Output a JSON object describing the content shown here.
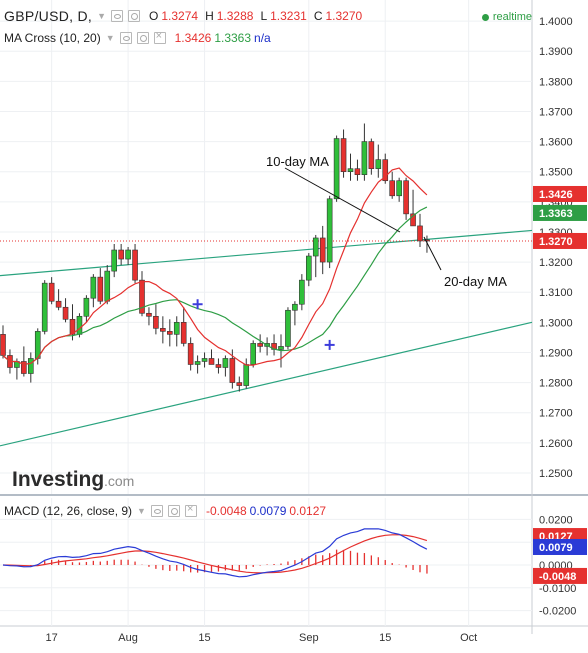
{
  "header": {
    "symbol": "GBP/USD, D,",
    "o_label": "O",
    "o_value": "1.3274",
    "h_label": "H",
    "h_value": "1.3288",
    "l_label": "L",
    "l_value": "1.3231",
    "c_label": "C",
    "c_value": "1.3270",
    "realtime": "realtime"
  },
  "ma_header": {
    "label": "MA Cross (10, 20)",
    "value1": "1.3426",
    "value2": "1.3363",
    "na": "n/a"
  },
  "macd_header": {
    "label": "MACD (12, 26, close, 9)",
    "hist": "-0.0048",
    "macd": "0.0079",
    "signal": "0.0127"
  },
  "annotations": {
    "ma10": "10-day MA",
    "ma20": "20-day MA"
  },
  "logo": {
    "main": "Investing",
    "suffix": ".com"
  },
  "colors": {
    "up": "#2fbf3a",
    "down": "#e5312f",
    "ma10": "#e5312f",
    "ma20": "#2e9e45",
    "trend": "#2aa37f",
    "macd": "#2a3bd6",
    "signal": "#e5312f"
  },
  "chart_data": [
    {
      "type": "candlestick",
      "title": "GBP/USD, D",
      "y_ticks": [
        "1.4000",
        "1.3900",
        "1.3800",
        "1.3700",
        "1.3600",
        "1.3500",
        "1.3400",
        "1.3300",
        "1.3200",
        "1.3100",
        "1.3000",
        "1.2900",
        "1.2800",
        "1.2700",
        "1.2600",
        "1.2500"
      ],
      "ylim": [
        1.245,
        1.405
      ],
      "x_ticks": [
        {
          "i": 7,
          "label": "17"
        },
        {
          "i": 18,
          "label": "Aug"
        },
        {
          "i": 29,
          "label": "15"
        },
        {
          "i": 44,
          "label": "Sep"
        },
        {
          "i": 55,
          "label": "15"
        },
        {
          "i": 67,
          "label": "Oct"
        }
      ],
      "price_labels": [
        {
          "value": 1.3426,
          "text": "1.3426",
          "color": "#e5312f"
        },
        {
          "value": 1.3363,
          "text": "1.3363",
          "color": "#2e9e45"
        },
        {
          "value": 1.327,
          "text": "1.3270",
          "color": "#e5312f"
        }
      ],
      "last_close": 1.327,
      "candles": [
        [
          1.296,
          1.299,
          1.288,
          1.289
        ],
        [
          1.289,
          1.291,
          1.283,
          1.285
        ],
        [
          1.285,
          1.288,
          1.281,
          1.287
        ],
        [
          1.287,
          1.292,
          1.282,
          1.283
        ],
        [
          1.283,
          1.29,
          1.28,
          1.288
        ],
        [
          1.288,
          1.298,
          1.286,
          1.297
        ],
        [
          1.297,
          1.314,
          1.296,
          1.313
        ],
        [
          1.313,
          1.315,
          1.306,
          1.307
        ],
        [
          1.307,
          1.311,
          1.304,
          1.305
        ],
        [
          1.305,
          1.308,
          1.3,
          1.301
        ],
        [
          1.301,
          1.306,
          1.294,
          1.296
        ],
        [
          1.296,
          1.303,
          1.295,
          1.302
        ],
        [
          1.302,
          1.309,
          1.3,
          1.308
        ],
        [
          1.308,
          1.316,
          1.305,
          1.315
        ],
        [
          1.315,
          1.318,
          1.306,
          1.307
        ],
        [
          1.307,
          1.319,
          1.306,
          1.317
        ],
        [
          1.317,
          1.326,
          1.315,
          1.324
        ],
        [
          1.324,
          1.326,
          1.319,
          1.321
        ],
        [
          1.321,
          1.325,
          1.319,
          1.324
        ],
        [
          1.324,
          1.326,
          1.313,
          1.314
        ],
        [
          1.314,
          1.317,
          1.302,
          1.303
        ],
        [
          1.303,
          1.305,
          1.299,
          1.302
        ],
        [
          1.302,
          1.306,
          1.296,
          1.298
        ],
        [
          1.298,
          1.302,
          1.293,
          1.297
        ],
        [
          1.297,
          1.301,
          1.292,
          1.296
        ],
        [
          1.296,
          1.302,
          1.292,
          1.3
        ],
        [
          1.3,
          1.305,
          1.292,
          1.293
        ],
        [
          1.293,
          1.295,
          1.284,
          1.286
        ],
        [
          1.286,
          1.289,
          1.283,
          1.287
        ],
        [
          1.287,
          1.29,
          1.285,
          1.288
        ],
        [
          1.288,
          1.291,
          1.286,
          1.286
        ],
        [
          1.286,
          1.288,
          1.283,
          1.285
        ],
        [
          1.285,
          1.289,
          1.282,
          1.288
        ],
        [
          1.288,
          1.291,
          1.278,
          1.28
        ],
        [
          1.28,
          1.282,
          1.277,
          1.279
        ],
        [
          1.279,
          1.288,
          1.278,
          1.286
        ],
        [
          1.286,
          1.294,
          1.285,
          1.293
        ],
        [
          1.293,
          1.296,
          1.29,
          1.292
        ],
        [
          1.292,
          1.295,
          1.289,
          1.293
        ],
        [
          1.293,
          1.296,
          1.289,
          1.291
        ],
        [
          1.291,
          1.296,
          1.285,
          1.292
        ],
        [
          1.292,
          1.305,
          1.291,
          1.304
        ],
        [
          1.304,
          1.307,
          1.299,
          1.306
        ],
        [
          1.306,
          1.316,
          1.304,
          1.314
        ],
        [
          1.314,
          1.323,
          1.312,
          1.322
        ],
        [
          1.322,
          1.329,
          1.315,
          1.328
        ],
        [
          1.328,
          1.332,
          1.316,
          1.32
        ],
        [
          1.32,
          1.342,
          1.318,
          1.341
        ],
        [
          1.341,
          1.362,
          1.34,
          1.361
        ],
        [
          1.361,
          1.364,
          1.348,
          1.35
        ],
        [
          1.35,
          1.356,
          1.347,
          1.351
        ],
        [
          1.351,
          1.354,
          1.347,
          1.349
        ],
        [
          1.349,
          1.366,
          1.347,
          1.36
        ],
        [
          1.36,
          1.361,
          1.349,
          1.351
        ],
        [
          1.351,
          1.359,
          1.348,
          1.354
        ],
        [
          1.354,
          1.356,
          1.346,
          1.347
        ],
        [
          1.347,
          1.35,
          1.341,
          1.342
        ],
        [
          1.342,
          1.348,
          1.34,
          1.347
        ],
        [
          1.347,
          1.348,
          1.334,
          1.336
        ],
        [
          1.336,
          1.344,
          1.332,
          1.332
        ],
        [
          1.332,
          1.336,
          1.325,
          1.327
        ],
        [
          1.3274,
          1.3288,
          1.3231,
          1.327
        ]
      ],
      "candle_x_index_map": [
        0,
        1,
        2,
        3,
        4,
        5,
        6,
        7,
        8,
        9,
        10,
        11,
        12,
        13,
        14,
        15,
        16,
        17,
        18,
        19,
        20,
        21,
        22,
        23,
        24,
        25,
        26,
        27,
        28,
        29,
        30,
        31,
        32,
        33,
        34,
        35,
        36,
        37,
        38,
        39,
        40,
        41,
        42,
        43,
        44,
        45,
        46,
        47,
        48,
        49,
        50,
        51,
        52,
        53,
        54,
        55,
        56,
        57,
        58,
        59,
        60,
        61
      ]
    },
    {
      "type": "line",
      "title": "MACD (12, 26, close, 9)",
      "y_ticks": [
        "0.0200",
        "0.0100",
        "0.0000",
        "-0.0100",
        "-0.0200"
      ],
      "ylim": [
        -0.025,
        0.025
      ],
      "price_labels": [
        {
          "value": 0.0127,
          "text": "0.0127",
          "color": "#e5312f"
        },
        {
          "value": 0.0079,
          "text": "0.0079",
          "color": "#2a3bd6"
        },
        {
          "value": -0.0048,
          "text": "-0.0048",
          "color": "#e5312f"
        }
      ],
      "series": [
        {
          "name": "MACD",
          "color": "#2a3bd6"
        },
        {
          "name": "Signal",
          "color": "#e5312f"
        },
        {
          "name": "Histogram",
          "color": "#e5312f"
        }
      ]
    }
  ]
}
